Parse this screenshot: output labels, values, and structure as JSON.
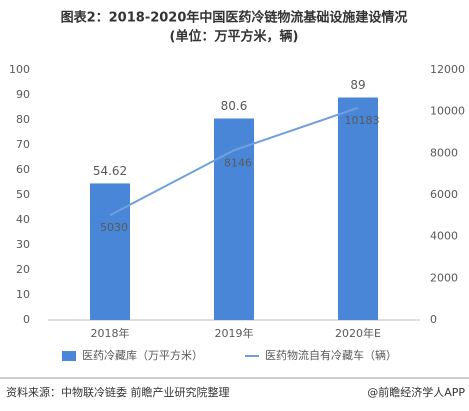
{
  "chart_data": {
    "type": "bar-line",
    "title": "图表2：2018-2020年中国医药冷链物流基础设施建设情况",
    "subtitle": "(单位：万平方米，辆)",
    "categories": [
      "2018年",
      "2019年",
      "2020年E"
    ],
    "series": [
      {
        "name": "医药冷藏库（万平方米）",
        "type": "bar",
        "color": "#4a86d8",
        "values": [
          54.62,
          80.6,
          89
        ]
      },
      {
        "name": "医药物流自有冷藏车（辆）",
        "type": "line",
        "axis": "y2",
        "color": "#6fa0dc",
        "values": [
          5030,
          8146,
          10183
        ]
      }
    ],
    "ylim": [
      0,
      100
    ],
    "yticks": [
      0,
      10,
      20,
      30,
      40,
      50,
      60,
      70,
      80,
      90,
      100
    ],
    "y2lim": [
      0,
      12000
    ],
    "y2ticks": [
      0,
      2000,
      4000,
      6000,
      8000,
      10000,
      12000
    ],
    "grid": false,
    "source": "资料来源：中物联冷链委 前瞻产业研究院整理",
    "credit": "@前瞻经济学人APP"
  }
}
